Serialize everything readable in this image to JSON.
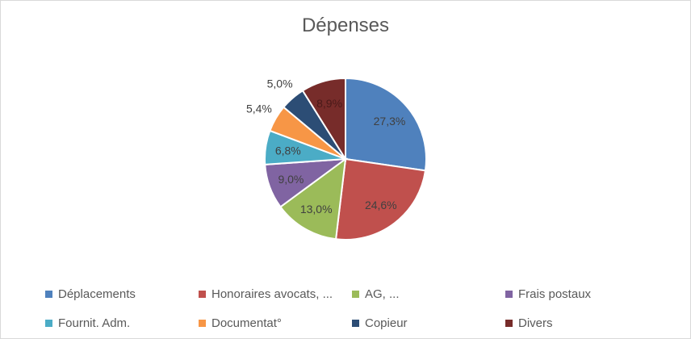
{
  "chart_data": {
    "type": "pie",
    "title": "Dépenses",
    "categories": [
      "Déplacements",
      "Honoraires avocats, ...",
      "AG, ...",
      "Frais postaux",
      "Fournit. Adm.",
      "Documentat°",
      "Copieur",
      "Divers"
    ],
    "values": [
      27.3,
      24.6,
      13.0,
      9.0,
      6.8,
      5.4,
      5.0,
      8.9
    ],
    "labels": [
      "27,3%",
      "24,6%",
      "13,0%",
      "9,0%",
      "6,8%",
      "5,4%",
      "5,0%",
      "8,9%"
    ],
    "colors": [
      "#4F81BD",
      "#C0504D",
      "#9BBB59",
      "#8064A2",
      "#4BACC6",
      "#F79646",
      "#2C4D75",
      "#772C2A"
    ],
    "legend_position": "bottom"
  }
}
